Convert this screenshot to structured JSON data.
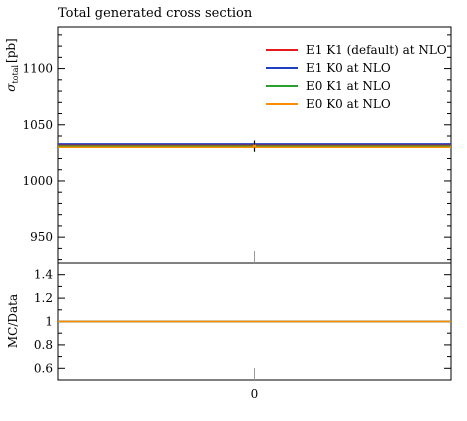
{
  "chart_data": {
    "type": "line",
    "title": "Total generated cross section",
    "main": {
      "ylabel_symbol": "σ",
      "ylabel_sub": "total",
      "ylabel_unit": "[pb]",
      "ylim": [
        927,
        1137
      ],
      "yticks": [
        950,
        1000,
        1050,
        1100
      ],
      "ytick_labels": [
        "950",
        "1000",
        "1050",
        "1100"
      ]
    },
    "ratio": {
      "ylabel": "MC/Data",
      "ylim": [
        0.5,
        1.5
      ],
      "yticks": [
        0.6,
        0.8,
        1.0,
        1.2,
        1.4
      ],
      "ytick_labels": [
        "0.6",
        "0.8",
        "1",
        "1.2",
        "1.4"
      ]
    },
    "x": {
      "xlim": [
        -0.5,
        0.5
      ],
      "xticks": [
        0
      ],
      "xtick_labels": [
        "0"
      ]
    },
    "series": [
      {
        "name": "E1 K1 (default) at NLO",
        "color": "#e41a1c",
        "x": [
          0
        ],
        "y": [
          1032
        ],
        "ratio": [
          1.0
        ]
      },
      {
        "name": "E1 K0 at NLO",
        "color": "#1f3fbf",
        "x": [
          0
        ],
        "y": [
          1033
        ],
        "ratio": [
          1.0
        ]
      },
      {
        "name": "E0 K1 at NLO",
        "color": "#2ca02c",
        "x": [
          0
        ],
        "y": [
          1031
        ],
        "ratio": [
          1.0
        ]
      },
      {
        "name": "E0 K0 at NLO",
        "color": "#ff8c00",
        "x": [
          0
        ],
        "y": [
          1030
        ],
        "ratio": [
          1.0
        ]
      }
    ],
    "data": {
      "x": [
        0
      ],
      "y": [
        1031
      ],
      "yerr": [
        5
      ]
    },
    "legend": "top-right",
    "grid": false
  }
}
